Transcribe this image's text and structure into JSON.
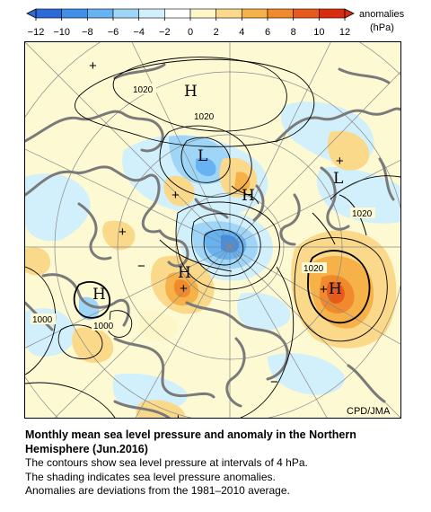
{
  "colorbar": {
    "ticks": [
      "−12",
      "−10",
      "−8",
      "−6",
      "−4",
      "−2",
      "0",
      "2",
      "4",
      "6",
      "8",
      "10",
      "12"
    ],
    "label_line1": "anomalies",
    "label_line2": "(hPa)",
    "colors": [
      "#2c6ad8",
      "#3f8ee8",
      "#66b2f2",
      "#9fd6f7",
      "#d2f0fb",
      "#ffffff",
      "#fdf6c8",
      "#fbd98a",
      "#f6b248",
      "#f08a2c",
      "#e85a1a",
      "#d92d12"
    ]
  },
  "map": {
    "credit": "CPD/JMA",
    "pressure_centers": [
      {
        "label": "H",
        "name": "high-arctic"
      },
      {
        "label": "L",
        "name": "low-greenland"
      },
      {
        "label": "H",
        "name": "high-arctic-small"
      },
      {
        "label": "L",
        "name": "low-northwest"
      },
      {
        "label": "H",
        "name": "high-pacific"
      },
      {
        "label": "H",
        "name": "high-atlantic"
      },
      {
        "label": "H",
        "name": "high-siberia"
      }
    ],
    "contour_labels": [
      "1020",
      "1020",
      "1020",
      "1020",
      "1000",
      "1000"
    ],
    "anomaly_signs": [
      "+",
      "+",
      "+",
      "+",
      "+",
      "+",
      "−",
      "−",
      "+"
    ]
  },
  "caption": {
    "title_line1": "Monthly mean sea level pressure and anomaly in the Northern",
    "title_line2": "Hemisphere (Jun.2016)",
    "line1": "The contours show sea level pressure at intervals of 4 hPa.",
    "line2": "The shading indicates sea level pressure anomalies.",
    "line3": "Anomalies are deviations from the 1981–2010 average."
  }
}
